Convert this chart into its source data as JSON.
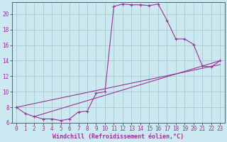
{
  "xlabel": "Windchill (Refroidissement éolien,°C)",
  "background_color": "#cce8f0",
  "grid_color": "#aacccc",
  "line_color": "#993399",
  "xlim": [
    -0.5,
    23.5
  ],
  "ylim": [
    6,
    21.5
  ],
  "yticks": [
    6,
    8,
    10,
    12,
    14,
    16,
    18,
    20
  ],
  "xticks": [
    0,
    1,
    2,
    3,
    4,
    5,
    6,
    7,
    8,
    9,
    10,
    11,
    12,
    13,
    14,
    15,
    16,
    17,
    18,
    19,
    20,
    21,
    22,
    23
  ],
  "series": [
    [
      0,
      8.0
    ],
    [
      1,
      7.2
    ],
    [
      2,
      6.8
    ],
    [
      3,
      6.5
    ],
    [
      4,
      6.5
    ],
    [
      5,
      6.3
    ],
    [
      6,
      6.5
    ],
    [
      7,
      7.4
    ],
    [
      8,
      7.5
    ],
    [
      9,
      9.8
    ],
    [
      10,
      10.0
    ],
    [
      11,
      21.0
    ],
    [
      12,
      21.3
    ],
    [
      13,
      21.2
    ],
    [
      14,
      21.2
    ],
    [
      15,
      21.1
    ],
    [
      16,
      21.3
    ],
    [
      17,
      19.2
    ],
    [
      18,
      16.8
    ],
    [
      19,
      16.8
    ],
    [
      20,
      16.1
    ],
    [
      21,
      13.3
    ],
    [
      22,
      13.2
    ],
    [
      23,
      14.0
    ]
  ],
  "linear_series": [
    [
      0,
      8.0
    ],
    [
      23,
      13.5
    ]
  ],
  "linear_series2": [
    [
      2,
      6.8
    ],
    [
      23,
      14.0
    ]
  ],
  "tick_fontsize": 5.5,
  "xlabel_fontsize": 6.0
}
